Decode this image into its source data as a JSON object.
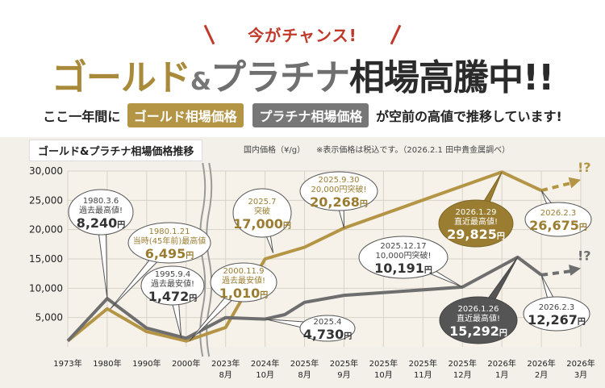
{
  "header": {
    "tagline": "今がチャンス!",
    "headline_gold": "ゴールド",
    "headline_amp": "&",
    "headline_platinum": "プラチナ",
    "headline_rest": "相場高騰中!!",
    "sub_prefix": "ここ一年間に",
    "pill_gold": "ゴールド相場価格",
    "pill_platinum": "プラチナ相場価格",
    "sub_suffix": "が空前の高値で推移しています!"
  },
  "colors": {
    "gold": "#b49545",
    "platinum": "#6e6e6e",
    "grid": "#d8d3c8"
  },
  "chart_data": {
    "type": "line",
    "title": "ゴールド&プラチナ相場価格推移",
    "unit_note": "国内価格（¥/g）",
    "tax_note": "※表示価格は税込です。（2026.2.1 田中貴金属調べ）",
    "ylim": [
      0,
      30000
    ],
    "yticks": [
      5000,
      10000,
      15000,
      20000,
      25000,
      30000
    ],
    "ytick_labels": [
      "5,000",
      "10,000",
      "15,000",
      "20,000",
      "25,000",
      "30,000"
    ],
    "x_labels": [
      [
        "1973年",
        ""
      ],
      [
        "1980年",
        ""
      ],
      [
        "1990年",
        ""
      ],
      [
        "2000年",
        ""
      ],
      [
        "2023年",
        "8月"
      ],
      [
        "2024年",
        "10月"
      ],
      [
        "2025年",
        "8月"
      ],
      [
        "2025年",
        "9月"
      ],
      [
        "2025年",
        "10月"
      ],
      [
        "2025年",
        "11月"
      ],
      [
        "2025年",
        "12月"
      ],
      [
        "2026年",
        "1月"
      ],
      [
        "2026年",
        "2月"
      ],
      [
        "2026年",
        "3月"
      ]
    ],
    "series": [
      {
        "name": "ゴールド",
        "color": "#b49545",
        "points": [
          [
            0,
            1000
          ],
          [
            1,
            6495
          ],
          [
            2,
            2600
          ],
          [
            3,
            1010
          ],
          [
            4,
            3300
          ],
          [
            5,
            15000
          ],
          [
            6,
            17000
          ],
          [
            7,
            20268
          ],
          [
            11,
            29825
          ],
          [
            12,
            26675
          ]
        ],
        "projection": [
          [
            12,
            26675
          ],
          [
            13,
            28500
          ]
        ]
      },
      {
        "name": "プラチナ",
        "color": "#6e6e6e",
        "points": [
          [
            0,
            1000
          ],
          [
            1,
            8240
          ],
          [
            2,
            3200
          ],
          [
            3,
            1472
          ],
          [
            4,
            5000
          ],
          [
            5,
            4730
          ],
          [
            5.5,
            5500
          ],
          [
            6,
            7600
          ],
          [
            7,
            8800
          ],
          [
            10,
            10191
          ],
          [
            11.4,
            15292
          ],
          [
            12,
            12267
          ]
        ],
        "projection": [
          [
            12,
            12267
          ],
          [
            13,
            13400
          ]
        ]
      }
    ],
    "annotations": [
      {
        "id": "a1",
        "date": "1980.3.6",
        "label": "過去最高値!",
        "value": "8,240",
        "unit": "円",
        "style": "light"
      },
      {
        "id": "a2",
        "date": "1980.1.21",
        "label": "当時(45年前)最高値",
        "value": "6,495",
        "unit": "円",
        "style": "light-gold"
      },
      {
        "id": "a3",
        "date": "1995.9.4",
        "label": "過去最安値!",
        "value": "1,472",
        "unit": "円",
        "style": "light"
      },
      {
        "id": "a4",
        "date": "2000.11.9",
        "label": "過去最安値!",
        "value": "1,010",
        "unit": "円",
        "style": "light-gold"
      },
      {
        "id": "a5",
        "date": "2025.7",
        "label": "突破",
        "value": "17,000",
        "unit": "円",
        "style": "light-gold"
      },
      {
        "id": "a6",
        "date": "2025.9.30",
        "label": "20,000円突破!",
        "value": "20,268",
        "unit": "円",
        "style": "light-gold"
      },
      {
        "id": "a7",
        "date": "2025.4",
        "label": "",
        "value": "4,730",
        "unit": "円",
        "style": "light"
      },
      {
        "id": "a8",
        "date": "2025.12.17",
        "label": "10,000円突破!",
        "value": "10,191",
        "unit": "円",
        "style": "light"
      },
      {
        "id": "a9",
        "date": "2026.1.29",
        "label": "直近最高値!",
        "value": "29,825",
        "unit": "円",
        "style": "dark-gold"
      },
      {
        "id": "a10",
        "date": "2026.2.3",
        "label": "",
        "value": "26,675",
        "unit": "円",
        "style": "light-gold"
      },
      {
        "id": "a11",
        "date": "2026.1.26",
        "label": "直近最高値!",
        "value": "15,292",
        "unit": "円",
        "style": "dark-gray"
      },
      {
        "id": "a12",
        "date": "2026.2.3",
        "label": "",
        "value": "12,267",
        "unit": "円",
        "style": "light"
      }
    ],
    "projection_marks": [
      "!?",
      "!?"
    ]
  }
}
